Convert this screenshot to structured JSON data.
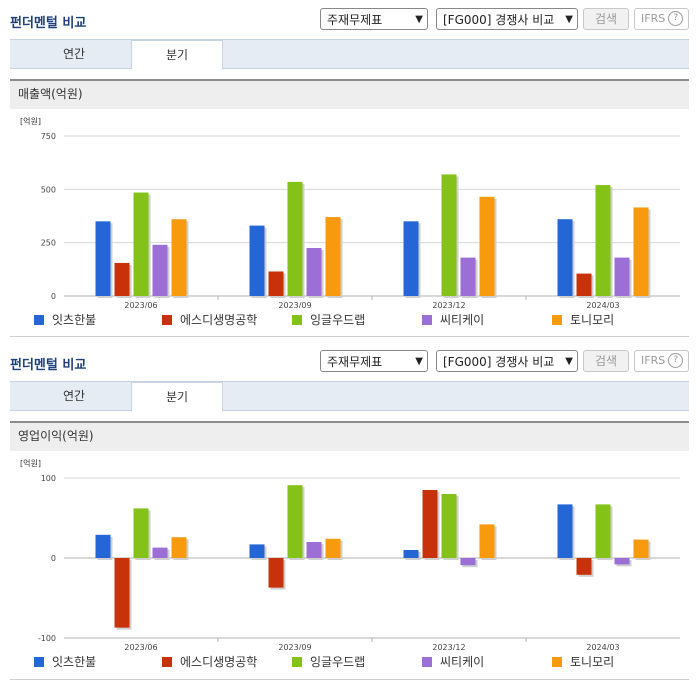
{
  "colors": [
    "#2566d6",
    "#c8320a",
    "#84c21a",
    "#9b6fd6",
    "#f79a0e"
  ],
  "panels": [
    {
      "title": "펀더멘털 비교",
      "select1": "주재무제표",
      "select2": "[FG000] 경쟁사 비교",
      "search_label": "검색",
      "ifrs_label": "IFRS",
      "ifrs_help": "?",
      "tabs": [
        "연간",
        "분기"
      ],
      "active_tab": "분기",
      "subtitle": "매출액(억원)",
      "unit": "[억원]",
      "chart_data": {
        "type": "bar",
        "title": "매출액(억원)",
        "unit": "[억원]",
        "categories": [
          "2023/06",
          "2023/09",
          "2023/12",
          "2024/03"
        ],
        "ylim": [
          0,
          750
        ],
        "yticks": [
          0,
          250,
          500,
          750
        ],
        "grid": true,
        "legend": "bottom",
        "series": [
          {
            "name": "잇츠한불",
            "values": [
              350,
              330,
              350,
              360
            ]
          },
          {
            "name": "에스디생명공학",
            "values": [
              155,
              115,
              null,
              105
            ]
          },
          {
            "name": "잉글우드랩",
            "values": [
              485,
              535,
              570,
              520
            ]
          },
          {
            "name": "씨티케이",
            "values": [
              240,
              225,
              180,
              180
            ]
          },
          {
            "name": "토니모리",
            "values": [
              360,
              370,
              465,
              415
            ]
          }
        ]
      }
    },
    {
      "title": "펀더멘털 비교",
      "select1": "주재무제표",
      "select2": "[FG000] 경쟁사 비교",
      "search_label": "검색",
      "ifrs_label": "IFRS",
      "ifrs_help": "?",
      "tabs": [
        "연간",
        "분기"
      ],
      "active_tab": "분기",
      "subtitle": "영업이익(억원)",
      "unit": "[억원]",
      "chart_data": {
        "type": "bar",
        "title": "영업이익(억원)",
        "unit": "[억원]",
        "categories": [
          "2023/06",
          "2023/09",
          "2023/12",
          "2024/03"
        ],
        "ylim": [
          -100,
          100
        ],
        "yticks": [
          -100,
          0,
          100
        ],
        "grid": true,
        "legend": "bottom",
        "series": [
          {
            "name": "잇츠한불",
            "values": [
              29,
              17,
              10,
              67
            ]
          },
          {
            "name": "에스디생명공학",
            "values": [
              -87,
              -37,
              85,
              -21
            ]
          },
          {
            "name": "잉글우드랩",
            "values": [
              62,
              91,
              80,
              67
            ]
          },
          {
            "name": "씨티케이",
            "values": [
              13,
              20,
              -9,
              -8
            ]
          },
          {
            "name": "토니모리",
            "values": [
              26,
              24,
              42,
              23
            ]
          }
        ]
      }
    }
  ]
}
